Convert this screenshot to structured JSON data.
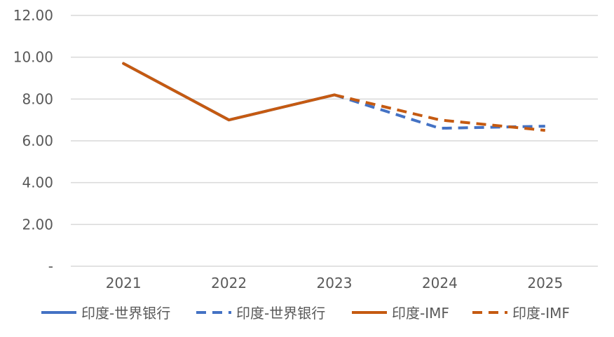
{
  "chart_data": {
    "type": "line",
    "title": "",
    "xlabel": "",
    "ylabel": "",
    "categories": [
      "2021",
      "2022",
      "2023",
      "2024",
      "2025"
    ],
    "ylim": [
      0,
      12
    ],
    "y_ticks": [
      {
        "value": 0,
        "label": "-"
      },
      {
        "value": 2,
        "label": "2.00"
      },
      {
        "value": 4,
        "label": "4.00"
      },
      {
        "value": 6,
        "label": "6.00"
      },
      {
        "value": 8,
        "label": "8.00"
      },
      {
        "value": 10,
        "label": "10.00"
      },
      {
        "value": 12,
        "label": "12.00"
      }
    ],
    "grid": "horizontal",
    "legend_position": "bottom",
    "series": [
      {
        "name": "印度-世界银行",
        "style": "solid",
        "color": "#4472C4",
        "values": [
          9.7,
          7.0,
          8.2,
          null,
          null
        ]
      },
      {
        "name": "印度-世界银行",
        "style": "dashed",
        "color": "#4472C4",
        "values": [
          null,
          null,
          8.2,
          6.6,
          6.7
        ]
      },
      {
        "name": "印度-IMF",
        "style": "solid",
        "color": "#C55A11",
        "values": [
          9.7,
          7.0,
          8.2,
          null,
          null
        ]
      },
      {
        "name": "印度-IMF",
        "style": "dashed",
        "color": "#C55A11",
        "values": [
          null,
          null,
          8.2,
          7.0,
          6.5
        ]
      }
    ]
  }
}
